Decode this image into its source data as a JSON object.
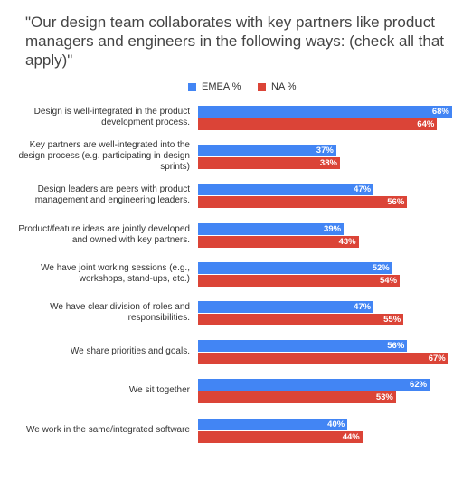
{
  "chart_data": {
    "type": "bar",
    "orientation": "horizontal",
    "title": "\"Our design team collaborates with key partners like product managers and engineers in the following ways: (check all that apply)\"",
    "categories": [
      "Design is well-integrated in the product development process.",
      "Key partners are well-integrated into the design process (e.g. participating in design sprints)",
      "Design leaders are peers with product management and engineering leaders.",
      "Product/feature ideas are jointly developed and owned with key partners.",
      "We have joint working sessions (e.g., workshops, stand-ups, etc.)",
      "We have clear division of roles and responsibilities.",
      "We share priorities and goals.",
      "We sit together",
      "We work in the same/integrated software"
    ],
    "series": [
      {
        "name": "EMEA %",
        "color": "#4285f4",
        "values": [
          68,
          37,
          47,
          39,
          52,
          47,
          56,
          62,
          40
        ],
        "value_labels": [
          "68%",
          "37%",
          "47%",
          "39%",
          "52%",
          "47%",
          "56%",
          "62%",
          "40%"
        ]
      },
      {
        "name": "NA %",
        "color": "#db4437",
        "values": [
          64,
          38,
          56,
          43,
          54,
          55,
          67,
          53,
          44
        ],
        "value_labels": [
          "64%",
          "38%",
          "56%",
          "43%",
          "54%",
          "55%",
          "67%",
          "53%",
          "44%"
        ]
      }
    ],
    "legend": "top"
  }
}
